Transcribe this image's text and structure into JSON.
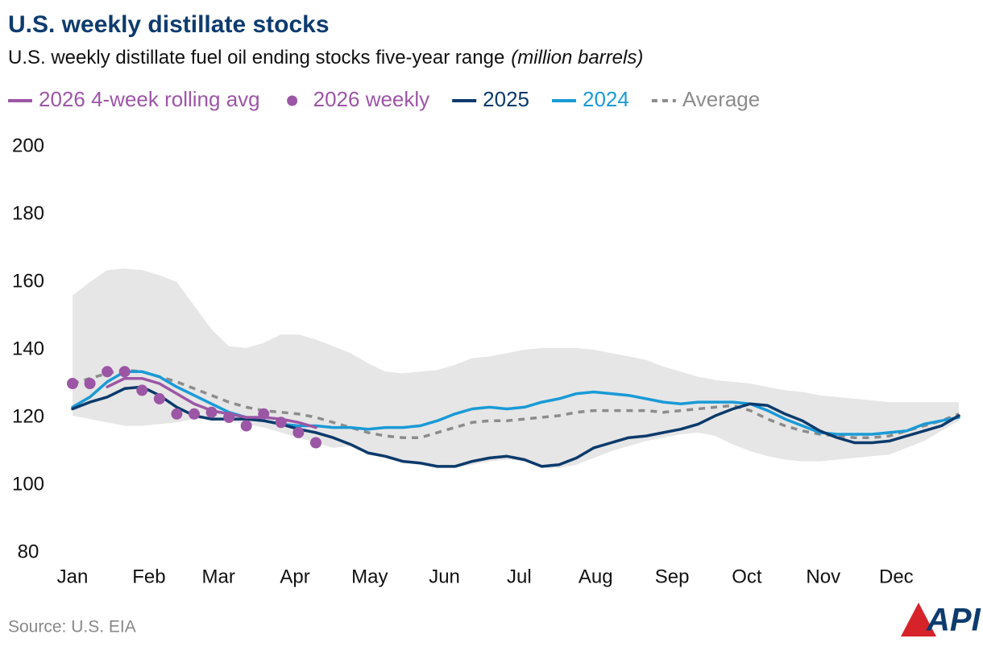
{
  "chart_data": {
    "type": "line",
    "title": "U.S. weekly distillate stocks",
    "subtitle": "U.S. weekly distillate fuel oil ending stocks five-year range",
    "unit": "(million barrels)",
    "source": "Source: U.S. EIA",
    "logo": "API",
    "x": [
      1,
      2,
      3,
      4,
      5,
      6,
      7,
      8,
      9,
      10,
      11,
      12,
      13,
      14,
      15,
      16,
      17,
      18,
      19,
      20,
      21,
      22,
      23,
      24,
      25,
      26,
      27,
      28,
      29,
      30,
      31,
      32,
      33,
      34,
      35,
      36,
      37,
      38,
      39,
      40,
      41,
      42,
      43,
      44,
      45,
      46,
      47,
      48,
      49,
      50,
      51,
      52
    ],
    "xlim": [
      1,
      52
    ],
    "xticks": [
      {
        "value": 1,
        "label": "Jan"
      },
      {
        "value": 5.4,
        "label": "Feb"
      },
      {
        "value": 9.4,
        "label": "Mar"
      },
      {
        "value": 13.8,
        "label": "Apr"
      },
      {
        "value": 18.1,
        "label": "May"
      },
      {
        "value": 22.4,
        "label": "Jun"
      },
      {
        "value": 26.7,
        "label": "Jul"
      },
      {
        "value": 31.1,
        "label": "Aug"
      },
      {
        "value": 35.5,
        "label": "Sep"
      },
      {
        "value": 39.8,
        "label": "Oct"
      },
      {
        "value": 44.2,
        "label": "Nov"
      },
      {
        "value": 48.4,
        "label": "Dec"
      }
    ],
    "ylim": [
      80,
      200
    ],
    "yticks": [
      80,
      100,
      120,
      140,
      160,
      180,
      200
    ],
    "range": {
      "color": "#e6e6e6",
      "upper": [
        156,
        160,
        163.5,
        164,
        163.5,
        162,
        160,
        153,
        146,
        141,
        140.5,
        142,
        144.5,
        144.5,
        143,
        141,
        139,
        136,
        133.5,
        133,
        133.5,
        134,
        135.5,
        137.5,
        138,
        139,
        140,
        140.5,
        140.5,
        140.5,
        140,
        139,
        138,
        137,
        135,
        133.5,
        132,
        131,
        130.5,
        130,
        129,
        128,
        127.5,
        126.5,
        126,
        125.5,
        125,
        124.5,
        124.5,
        124.5,
        124.5,
        124.5
      ],
      "lower": [
        120.5,
        119.5,
        118.5,
        117.5,
        117.5,
        118,
        118.5,
        119.5,
        119.5,
        119,
        118,
        117,
        115.5,
        114,
        112.5,
        111,
        111.5,
        109,
        108,
        106.5,
        106,
        105,
        105,
        106,
        107,
        107.5,
        107,
        105,
        105,
        106,
        108,
        110,
        111.5,
        113,
        114,
        115,
        115.5,
        114.5,
        112,
        110,
        108.5,
        107.5,
        107,
        107,
        107.5,
        108,
        108.5,
        109,
        111,
        113,
        116,
        119
      ]
    },
    "series": [
      {
        "name": "2026 4-week rolling avg",
        "color": "#9c56a6",
        "style": "line",
        "values": [
          null,
          null,
          129,
          131.5,
          131.5,
          130,
          127,
          124,
          122,
          121,
          120,
          120,
          119.5,
          118.5,
          117,
          null,
          null,
          null,
          null,
          null,
          null,
          null,
          null,
          null,
          null,
          null,
          null,
          null,
          null,
          null,
          null,
          null,
          null,
          null,
          null,
          null,
          null,
          null,
          null,
          null,
          null,
          null,
          null,
          null,
          null,
          null,
          null,
          null,
          null,
          null,
          null,
          null
        ]
      },
      {
        "name": "2026 weekly",
        "color": "#9c56a6",
        "style": "dots",
        "values": [
          130,
          130,
          133.5,
          133.5,
          128,
          125.5,
          121,
          121,
          121.5,
          120,
          117.5,
          121,
          118.5,
          115.5,
          112.5,
          null,
          null,
          null,
          null,
          null,
          null,
          null,
          null,
          null,
          null,
          null,
          null,
          null,
          null,
          null,
          null,
          null,
          null,
          null,
          null,
          null,
          null,
          null,
          null,
          null,
          null,
          null,
          null,
          null,
          null,
          null,
          null,
          null,
          null,
          null,
          null,
          null
        ]
      },
      {
        "name": "2025",
        "color": "#0b3a6b",
        "style": "line",
        "values": [
          122.5,
          124.5,
          126,
          128.5,
          129,
          126.5,
          123,
          120.5,
          119.5,
          119.5,
          119.5,
          119,
          118,
          116.5,
          115.5,
          114,
          112,
          109.5,
          108.5,
          107,
          106.5,
          105.5,
          105.5,
          107,
          108,
          108.5,
          107.5,
          105.5,
          106,
          108,
          111,
          112.5,
          114,
          114.5,
          115.5,
          116.5,
          118,
          120.5,
          122.5,
          124,
          123.5,
          121,
          119,
          116,
          114,
          112.5,
          112.5,
          113,
          114.5,
          116,
          117.5,
          120.5
        ]
      },
      {
        "name": "2024",
        "color": "#1a9ad6",
        "style": "line",
        "values": [
          123,
          126,
          130.5,
          133.5,
          133.5,
          132,
          129,
          126.5,
          124,
          121.5,
          120,
          119,
          118,
          117.5,
          117.5,
          117,
          117,
          116.5,
          117,
          117,
          117.5,
          119,
          121,
          122.5,
          123,
          122.5,
          123,
          124.5,
          125.5,
          127,
          127.5,
          127,
          126.5,
          125.5,
          124.5,
          124,
          124.5,
          124.5,
          124.5,
          124,
          122,
          119.5,
          117.5,
          115.5,
          115,
          115,
          115,
          115.5,
          116,
          118,
          119,
          120
        ]
      },
      {
        "name": "Average",
        "color": "#8c8c8c",
        "style": "dashed",
        "values": [
          130,
          131.5,
          133,
          134,
          133.5,
          132,
          130.5,
          128.5,
          126.5,
          124.5,
          123,
          122,
          121.5,
          121,
          120,
          118.5,
          117,
          115.5,
          114.5,
          114,
          114,
          115.5,
          117,
          118.5,
          119,
          119,
          119.5,
          120,
          120.5,
          121.5,
          122,
          122,
          122,
          122,
          121.5,
          122,
          122.5,
          123,
          123.5,
          122,
          119.5,
          117.5,
          116,
          115,
          114.5,
          114,
          114,
          114.5,
          116,
          117.5,
          119,
          121
        ]
      }
    ]
  }
}
